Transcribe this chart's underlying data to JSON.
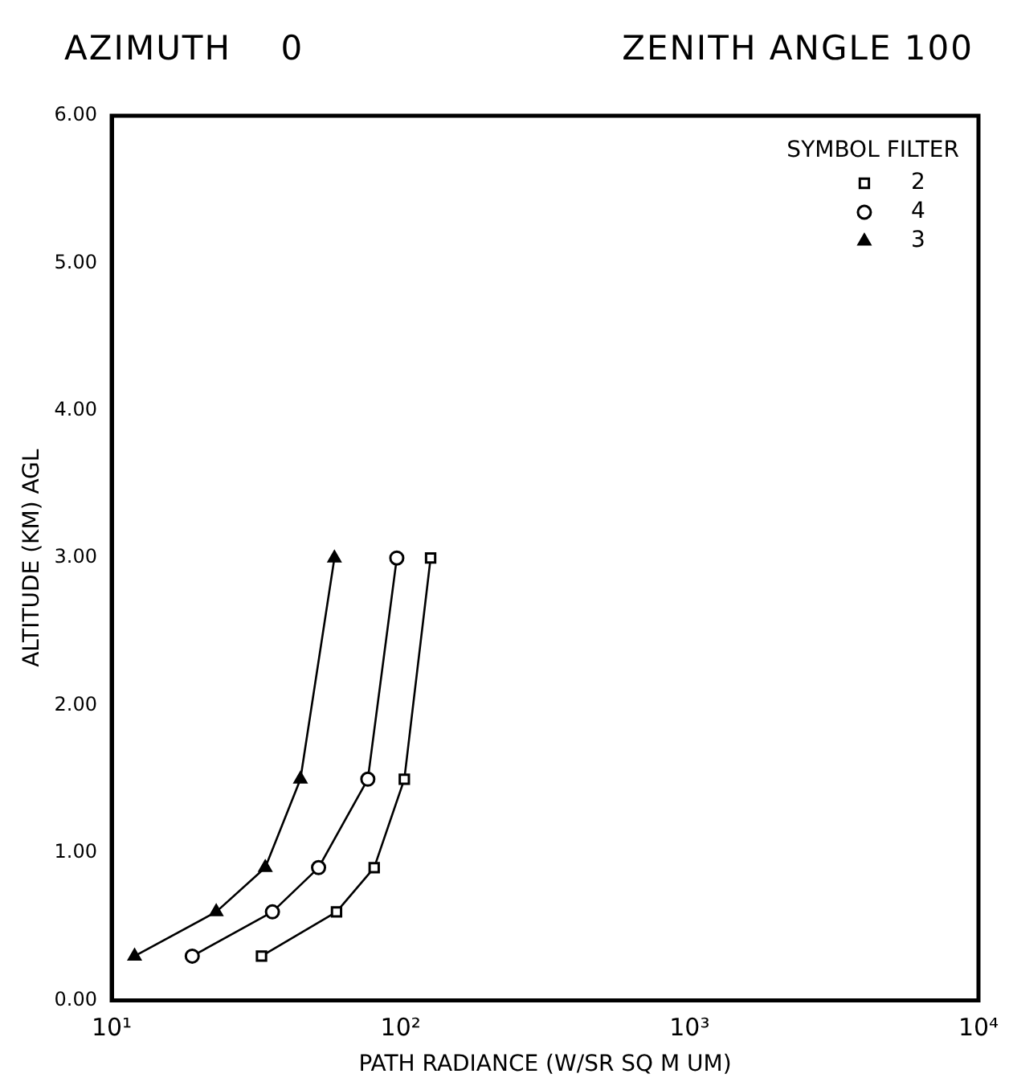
{
  "chart_data": {
    "type": "line",
    "title": "AZIMUTH    0",
    "subtitle": "ZENITH ANGLE 100",
    "xlabel": "PATH RADIANCE (W/SR SQ M UM)",
    "ylabel": "ALTITUDE (KM) AGL",
    "legend_title": "SYMBOL FILTER",
    "log": "x",
    "xlim": [
      10,
      10000
    ],
    "xticks": [
      {
        "value": 10,
        "label": "10¹"
      },
      {
        "value": 100,
        "label": "10²"
      },
      {
        "value": 1000,
        "label": "10³"
      },
      {
        "value": 10000,
        "label": "10⁴"
      }
    ],
    "ylim": [
      0,
      6
    ],
    "yticks": [
      {
        "value": 0,
        "label": "0.00"
      },
      {
        "value": 1,
        "label": "1.00"
      },
      {
        "value": 2,
        "label": "2.00"
      },
      {
        "value": 3,
        "label": "3.00"
      },
      {
        "value": 4,
        "label": "4.00"
      },
      {
        "value": 5,
        "label": "5.00"
      },
      {
        "value": 6,
        "label": "6.00"
      }
    ],
    "grid": false,
    "legend": "top right",
    "line_style": "solid",
    "series": [
      {
        "name": "2",
        "color": "#000000",
        "marker": "square",
        "x": [
          33,
          60,
          81,
          103,
          127
        ],
        "values": [
          0.3,
          0.6,
          0.9,
          1.5,
          3.0
        ]
      },
      {
        "name": "4",
        "color": "#000000",
        "marker": "circle",
        "x": [
          19,
          36,
          52,
          77,
          97
        ],
        "values": [
          0.3,
          0.6,
          0.9,
          1.5,
          3.0
        ]
      },
      {
        "name": "3",
        "color": "#000000",
        "marker": "triangle",
        "x": [
          12,
          23,
          34,
          45,
          59
        ],
        "values": [
          0.3,
          0.6,
          0.9,
          1.5,
          3.0
        ]
      }
    ]
  }
}
